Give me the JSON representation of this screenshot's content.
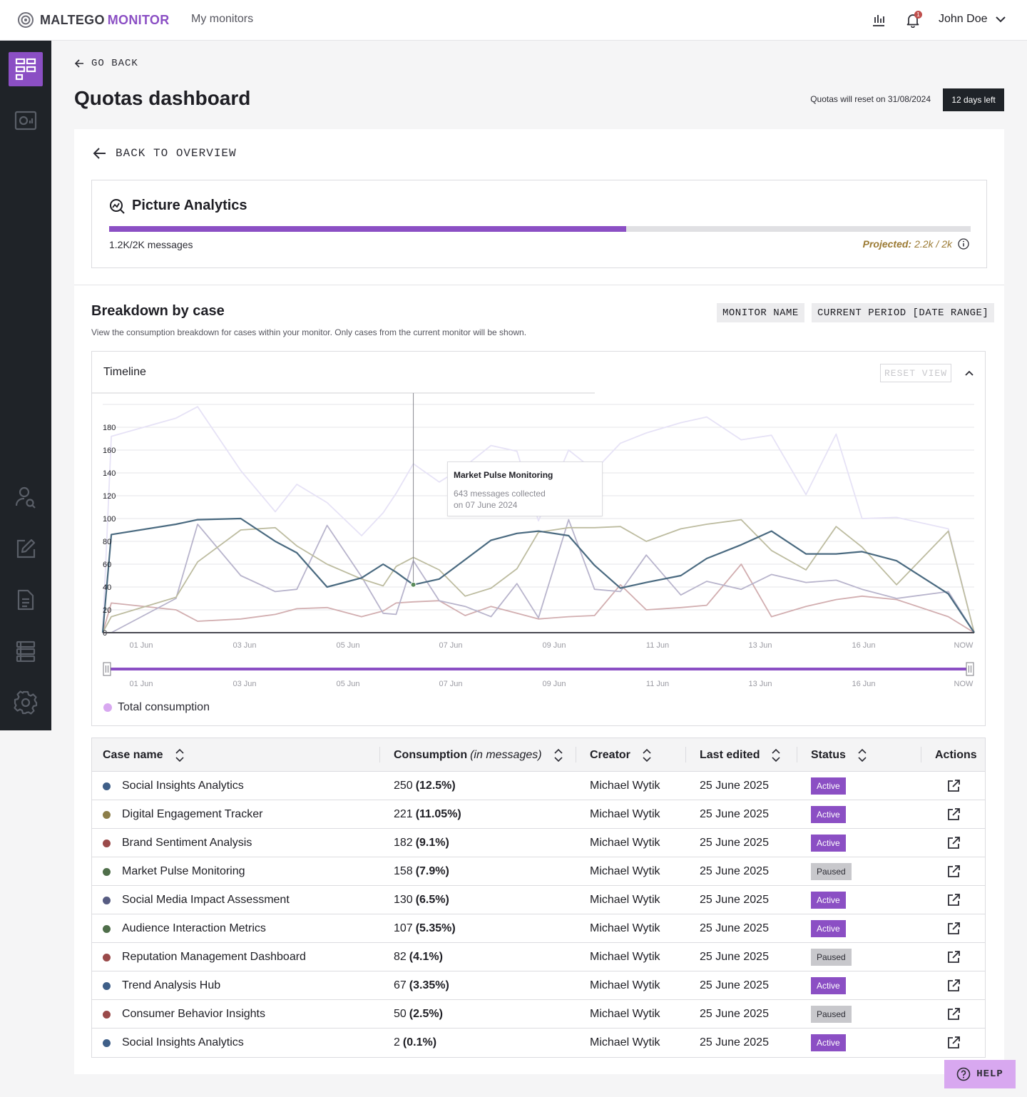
{
  "app": {
    "logo_main": "MALTEGO",
    "logo_accent": "MONITOR",
    "nav_link": "My monitors",
    "notification_count": "1",
    "user_name": "John Doe"
  },
  "sidebar": {
    "items": [
      {
        "name": "dashboard",
        "icon": "dashboard-grid-icon",
        "active": true
      },
      {
        "name": "analytics",
        "icon": "analytics-screen-icon",
        "active": false
      },
      {
        "name": "user-search",
        "icon": "user-search-icon",
        "active": false
      },
      {
        "name": "edit",
        "icon": "edit-icon",
        "active": false
      },
      {
        "name": "document",
        "icon": "document-icon",
        "active": false
      },
      {
        "name": "list",
        "icon": "list-rows-icon",
        "active": false
      },
      {
        "name": "settings",
        "icon": "gear-icon",
        "active": false
      }
    ]
  },
  "header": {
    "go_back": "GO BACK",
    "title": "Quotas dashboard",
    "reset_text": "Quotas will reset on 31/08/2024",
    "days_left": "12 days left"
  },
  "quota": {
    "back_overview": "BACK TO OVERVIEW",
    "title": "Picture Analytics",
    "used_fraction": 0.6,
    "count_text": "1.2K/2K messages",
    "projected_label": "Projected:",
    "projected_value": "2.2k / 2k"
  },
  "breakdown": {
    "title": "Breakdown by case",
    "description": "View the consumption breakdown for cases within your monitor. Only cases from the current monitor will be shown.",
    "chip_monitor": "MONITOR NAME",
    "chip_period": "CURRENT PERIOD [DATE RANGE]"
  },
  "timeline": {
    "title": "Timeline",
    "reset_view": "RESET VIEW",
    "legend_label": "Total consumption",
    "tooltip": {
      "title": "Market Pulse Monitoring",
      "line1": "643 messages collected",
      "line2": "on 07 June 2024"
    }
  },
  "chart_data": {
    "type": "line",
    "ylim": [
      0,
      200
    ],
    "yticks": [
      0,
      20,
      40,
      60,
      80,
      100,
      120,
      140,
      160,
      180
    ],
    "x_tick_labels": [
      "01 Jun",
      "03 Jun",
      "05 Jun",
      "07 Jun",
      "09 Jun",
      "11 Jun",
      "13 Jun",
      "16 Jun",
      "NOW"
    ],
    "brush_tick_labels": [
      "01 Jun",
      "03 Jun",
      "05 Jun",
      "07 Jun",
      "09 Jun",
      "11 Jun",
      "13 Jun",
      "16 Jun",
      "NOW"
    ],
    "x_range": [
      -0.2,
      20
    ],
    "colors": [
      "#4a6a80",
      "#bdbca0",
      "#b8b4cc",
      "#d2aeb0",
      "#e6e2f6"
    ],
    "series": [
      {
        "x": [
          -0.2,
          0,
          1.5,
          2,
          3,
          3.8,
          4.3,
          5,
          5.8,
          6.3,
          6.6,
          7,
          7.6,
          8.2,
          8.8,
          9.4,
          9.9,
          10.6,
          11.2,
          11.8,
          12.4,
          13.2,
          13.8,
          14.6,
          15.3,
          16.1,
          16.8,
          17.4,
          18.2,
          19.4,
          20
        ],
        "y": [
          0,
          86,
          95,
          99,
          100,
          80,
          70,
          40,
          48,
          60,
          53,
          42,
          47,
          64,
          81,
          87,
          89,
          85,
          59,
          39,
          44,
          50,
          65,
          77,
          89,
          69,
          69,
          71,
          63,
          34,
          0
        ]
      },
      {
        "x": [
          -0.2,
          0,
          1.5,
          2,
          3,
          3.8,
          4.3,
          5,
          5.8,
          6.3,
          6.6,
          7,
          7.6,
          8.2,
          8.8,
          9.4,
          9.9,
          10.6,
          11.2,
          11.8,
          12.4,
          13.2,
          13.8,
          14.6,
          15.3,
          16.1,
          16.8,
          17.4,
          18.2,
          19.4,
          20
        ],
        "y": [
          0,
          14,
          31,
          62,
          90,
          92,
          76,
          60,
          47,
          41,
          58,
          66,
          55,
          32,
          39,
          56,
          88,
          92,
          92,
          93,
          80,
          91,
          95,
          99,
          72,
          55,
          93,
          75,
          42,
          89,
          0
        ]
      },
      {
        "x": [
          -0.2,
          0,
          1.5,
          2,
          3,
          3.8,
          4.3,
          5,
          5.8,
          6.3,
          6.6,
          7,
          7.6,
          8.2,
          8.8,
          9.4,
          9.9,
          10.6,
          11.2,
          11.8,
          12.4,
          13.2,
          13.8,
          14.6,
          15.3,
          16.1,
          16.8,
          17.4,
          18.2,
          19.4,
          20
        ],
        "y": [
          0,
          0,
          30,
          95,
          50,
          36,
          38,
          94,
          49,
          17,
          16,
          63,
          28,
          23,
          14,
          43,
          13,
          99,
          38,
          36,
          68,
          33,
          45,
          38,
          51,
          44,
          46,
          38,
          30,
          36,
          0
        ]
      },
      {
        "x": [
          -0.2,
          0,
          1.5,
          2,
          3,
          3.8,
          4.3,
          5,
          5.8,
          6.3,
          6.6,
          7,
          7.6,
          8.2,
          8.8,
          9.4,
          9.9,
          10.6,
          11.2,
          11.8,
          12.4,
          13.2,
          13.8,
          14.6,
          15.3,
          16.1,
          16.8,
          17.4,
          18.2,
          19.4,
          20
        ],
        "y": [
          0,
          26,
          20,
          10,
          12,
          16,
          21,
          22,
          14,
          19,
          26,
          27,
          28,
          15,
          23,
          17,
          12,
          14,
          15,
          42,
          20,
          22,
          24,
          60,
          14,
          23,
          29,
          32,
          29,
          14,
          0
        ]
      },
      {
        "x": [
          -0.2,
          0,
          1.5,
          2,
          3,
          3.8,
          4.3,
          5,
          5.8,
          6.3,
          6.6,
          7,
          7.6,
          8.2,
          8.8,
          9.4,
          9.9,
          10.6,
          11.2,
          11.8,
          12.4,
          13.2,
          13.8,
          14.6,
          15.3,
          16.1,
          16.8,
          17.4,
          18.2,
          19.4,
          20
        ],
        "y": [
          0,
          172,
          188,
          198,
          142,
          106,
          130,
          114,
          85,
          105,
          122,
          148,
          132,
          146,
          164,
          159,
          98,
          160,
          142,
          166,
          175,
          184,
          189,
          169,
          173,
          121,
          174,
          100,
          101,
          91,
          0
        ]
      }
    ]
  },
  "table": {
    "headers": {
      "case_name": "Case name",
      "consumption": "Consumption",
      "consumption_unit": "(in messages)",
      "creator": "Creator",
      "last_edited": "Last edited",
      "status": "Status",
      "actions": "Actions"
    },
    "rows": [
      {
        "name": "Social Insights Analytics",
        "color": "#3f5f88",
        "value": "250",
        "pct": "(12.5%)",
        "creator": "Michael Wytik",
        "edited": "25 June 2025",
        "status": "Active"
      },
      {
        "name": "Digital Engagement Tracker",
        "color": "#8c7e4a",
        "value": "221",
        "pct": "(11.05%)",
        "creator": "Michael Wytik",
        "edited": "25 June 2025",
        "status": "Active"
      },
      {
        "name": "Brand Sentiment Analysis",
        "color": "#9a4a4a",
        "value": "182",
        "pct": "(9.1%)",
        "creator": "Michael Wytik",
        "edited": "25 June 2025",
        "status": "Active"
      },
      {
        "name": "Market Pulse Monitoring",
        "color": "#4f6e4a",
        "value": "158",
        "pct": "(7.9%)",
        "creator": "Michael Wytik",
        "edited": "25 June 2025",
        "status": "Paused"
      },
      {
        "name": "Social Media Impact Assessment",
        "color": "#575c82",
        "value": "130",
        "pct": "(6.5%)",
        "creator": "Michael Wytik",
        "edited": "25 June 2025",
        "status": "Active"
      },
      {
        "name": "Audience Interaction Metrics",
        "color": "#4f6e4a",
        "value": "107",
        "pct": "(5.35%)",
        "creator": "Michael Wytik",
        "edited": "25 June 2025",
        "status": "Active"
      },
      {
        "name": "Reputation Management Dashboard",
        "color": "#9a4a4a",
        "value": "82",
        "pct": "(4.1%)",
        "creator": "Michael Wytik",
        "edited": "25 June 2025",
        "status": "Paused"
      },
      {
        "name": "Trend Analysis Hub",
        "color": "#3f5f88",
        "value": "67",
        "pct": "(3.35%)",
        "creator": "Michael Wytik",
        "edited": "25 June 2025",
        "status": "Active"
      },
      {
        "name": "Consumer Behavior Insights",
        "color": "#9a4a4a",
        "value": "50",
        "pct": "(2.5%)",
        "creator": "Michael Wytik",
        "edited": "25 June 2025",
        "status": "Paused"
      },
      {
        "name": "Social Insights Analytics",
        "color": "#3f5f88",
        "value": "2",
        "pct": "(0.1%)",
        "creator": "Michael Wytik",
        "edited": "25 June 2025",
        "status": "Active"
      }
    ]
  },
  "help": {
    "label": "HELP"
  }
}
